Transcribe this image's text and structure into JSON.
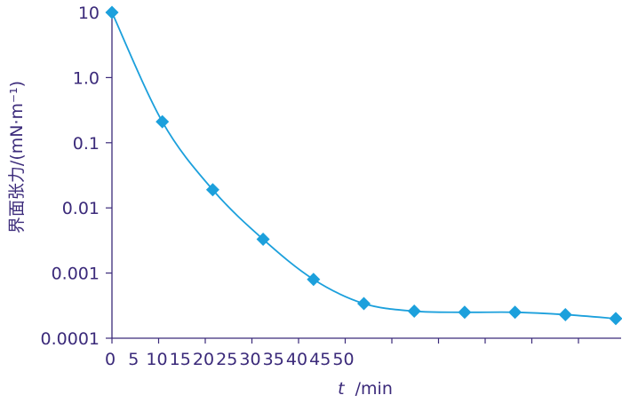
{
  "chart_data": {
    "type": "scatter",
    "title": "",
    "ylabel": "界面张力/(mN·m⁻¹)",
    "xlabel_italic": "t",
    "xlabel_rest": "/min",
    "yscale": "log",
    "ylim": [
      0.0001,
      10
    ],
    "y_ticks": [
      10,
      1.0,
      0.1,
      0.01,
      0.001,
      0.0001
    ],
    "y_tick_labels": [
      "10",
      "1.0",
      "0.1",
      "0.01",
      "0.001",
      "0.0001"
    ],
    "x_tick_labels": [
      "0",
      "5",
      "10",
      "15",
      "20",
      "25",
      "30",
      "35",
      "40",
      "45",
      "50"
    ],
    "x_ticks_without_labels": 4,
    "x": [
      0,
      10,
      20,
      30,
      40,
      50,
      60,
      70,
      80,
      90,
      100
    ],
    "y": [
      10,
      0.21,
      0.019,
      0.0033,
      0.0008,
      0.00034,
      0.00026,
      0.00025,
      0.00025,
      0.00023,
      0.0002
    ],
    "marker": "diamond",
    "fit_curve": "smooth",
    "grid": false,
    "colors": {
      "series": "#1ca0dc",
      "axis": "#3b2a7a",
      "text": "#3b2a7a"
    }
  }
}
